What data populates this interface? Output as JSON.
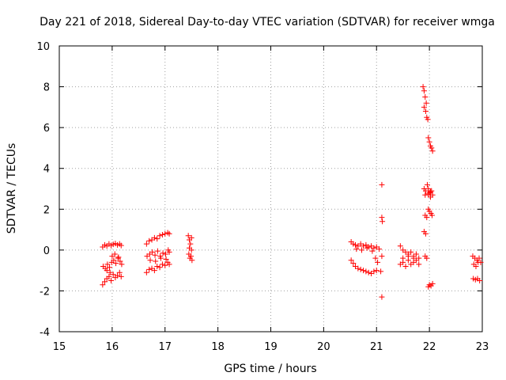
{
  "chart_data": {
    "type": "scatter",
    "title": "Day 221 of 2018, Sidereal Day-to-day VTEC variation (SDTVAR) for receiver wmga",
    "xlabel": "GPS time / hours",
    "ylabel": "SDTVAR / TECUs",
    "xlim": [
      15,
      23
    ],
    "ylim": [
      -4,
      10
    ],
    "xticks": [
      15,
      16,
      17,
      18,
      19,
      20,
      21,
      22,
      23
    ],
    "yticks": [
      -4,
      -2,
      0,
      2,
      4,
      6,
      8,
      10
    ],
    "xtick_labels": [
      "15",
      "16",
      "17",
      "18",
      "19",
      "20",
      "21",
      "22",
      "23"
    ],
    "ytick_labels": [
      "-4",
      "-2",
      "0",
      "2",
      "4",
      "6",
      "8",
      "10"
    ],
    "grid": true,
    "marker": "plus",
    "color": "#ff0000",
    "points": [
      [
        15.82,
        0.15
      ],
      [
        15.86,
        0.25
      ],
      [
        15.9,
        0.2
      ],
      [
        15.94,
        0.3
      ],
      [
        15.98,
        0.22
      ],
      [
        16.02,
        0.28
      ],
      [
        16.06,
        0.32
      ],
      [
        16.1,
        0.25
      ],
      [
        16.14,
        0.3
      ],
      [
        16.17,
        0.22
      ],
      [
        15.82,
        -1.7
      ],
      [
        15.86,
        -1.55
      ],
      [
        15.9,
        -1.4
      ],
      [
        15.94,
        -1.3
      ],
      [
        15.98,
        -1.5
      ],
      [
        16.02,
        -1.2
      ],
      [
        16.06,
        -1.35
      ],
      [
        16.1,
        -1.25
      ],
      [
        16.14,
        -1.1
      ],
      [
        16.17,
        -1.3
      ],
      [
        15.83,
        -0.8
      ],
      [
        15.87,
        -0.9
      ],
      [
        15.91,
        -0.7
      ],
      [
        15.95,
        -0.85
      ],
      [
        15.99,
        -0.6
      ],
      [
        16.03,
        -0.5
      ],
      [
        16.07,
        -0.65
      ],
      [
        16.11,
        -0.4
      ],
      [
        16.15,
        -0.55
      ],
      [
        16.18,
        -0.7
      ],
      [
        15.9,
        -1.0
      ],
      [
        15.96,
        -1.1
      ],
      [
        16.0,
        -0.3
      ],
      [
        16.05,
        -0.2
      ],
      [
        16.12,
        -0.35
      ],
      [
        16.65,
        0.3
      ],
      [
        16.7,
        0.45
      ],
      [
        16.75,
        0.5
      ],
      [
        16.8,
        0.6
      ],
      [
        16.85,
        0.55
      ],
      [
        16.9,
        0.7
      ],
      [
        16.95,
        0.75
      ],
      [
        17.0,
        0.8
      ],
      [
        17.05,
        0.85
      ],
      [
        17.08,
        0.8
      ],
      [
        16.65,
        -1.1
      ],
      [
        16.7,
        -0.95
      ],
      [
        16.75,
        -0.9
      ],
      [
        16.8,
        -1.0
      ],
      [
        16.85,
        -0.8
      ],
      [
        16.9,
        -0.85
      ],
      [
        16.95,
        -0.7
      ],
      [
        17.0,
        -0.75
      ],
      [
        17.05,
        -0.6
      ],
      [
        17.08,
        -0.7
      ],
      [
        16.66,
        -0.3
      ],
      [
        16.71,
        -0.2
      ],
      [
        16.76,
        -0.1
      ],
      [
        16.81,
        -0.25
      ],
      [
        16.86,
        -0.05
      ],
      [
        16.91,
        -0.3
      ],
      [
        16.96,
        -0.15
      ],
      [
        17.01,
        -0.2
      ],
      [
        17.06,
        0.0
      ],
      [
        17.08,
        -0.1
      ],
      [
        16.72,
        -0.5
      ],
      [
        16.82,
        -0.55
      ],
      [
        16.92,
        -0.4
      ],
      [
        17.02,
        -0.45
      ],
      [
        17.44,
        0.7
      ],
      [
        17.46,
        0.5
      ],
      [
        17.48,
        0.3
      ],
      [
        17.5,
        0.6
      ],
      [
        17.45,
        -0.2
      ],
      [
        17.47,
        -0.4
      ],
      [
        17.49,
        -0.3
      ],
      [
        17.51,
        -0.5
      ],
      [
        17.46,
        0.1
      ],
      [
        17.5,
        0.0
      ],
      [
        20.52,
        0.4
      ],
      [
        20.56,
        0.3
      ],
      [
        20.6,
        0.25
      ],
      [
        20.65,
        0.2
      ],
      [
        20.7,
        0.3
      ],
      [
        20.75,
        0.2
      ],
      [
        20.8,
        0.25
      ],
      [
        20.85,
        0.15
      ],
      [
        20.9,
        0.2
      ],
      [
        20.95,
        0.1
      ],
      [
        21.0,
        0.15
      ],
      [
        21.05,
        0.05
      ],
      [
        20.52,
        -0.5
      ],
      [
        20.56,
        -0.65
      ],
      [
        20.6,
        -0.8
      ],
      [
        20.65,
        -0.9
      ],
      [
        20.7,
        -0.95
      ],
      [
        20.75,
        -1.0
      ],
      [
        20.8,
        -1.05
      ],
      [
        20.85,
        -1.1
      ],
      [
        20.9,
        -1.15
      ],
      [
        20.95,
        -1.05
      ],
      [
        21.0,
        -1.0
      ],
      [
        20.62,
        0.05
      ],
      [
        20.72,
        0.0
      ],
      [
        20.82,
        0.1
      ],
      [
        20.92,
        -0.05
      ],
      [
        20.98,
        -0.4
      ],
      [
        21.02,
        -0.6
      ],
      [
        21.08,
        -1.05
      ],
      [
        21.1,
        -0.3
      ],
      [
        21.1,
        3.2
      ],
      [
        21.1,
        1.6
      ],
      [
        21.11,
        1.4
      ],
      [
        21.1,
        -2.3
      ],
      [
        21.45,
        0.2
      ],
      [
        21.5,
        0.0
      ],
      [
        21.55,
        -0.1
      ],
      [
        21.6,
        -0.2
      ],
      [
        21.65,
        -0.1
      ],
      [
        21.7,
        -0.3
      ],
      [
        21.75,
        -0.2
      ],
      [
        21.8,
        -0.4
      ],
      [
        21.45,
        -0.7
      ],
      [
        21.5,
        -0.6
      ],
      [
        21.55,
        -0.8
      ],
      [
        21.6,
        -0.5
      ],
      [
        21.65,
        -0.7
      ],
      [
        21.7,
        -0.6
      ],
      [
        21.75,
        -0.5
      ],
      [
        21.8,
        -0.7
      ],
      [
        21.5,
        -0.4
      ],
      [
        21.6,
        -0.3
      ],
      [
        21.7,
        -0.4
      ],
      [
        21.88,
        8.0
      ],
      [
        21.9,
        7.8
      ],
      [
        21.92,
        7.5
      ],
      [
        21.94,
        7.2
      ],
      [
        21.9,
        7.0
      ],
      [
        21.93,
        6.8
      ],
      [
        21.95,
        6.5
      ],
      [
        21.97,
        6.4
      ],
      [
        21.98,
        5.5
      ],
      [
        22.0,
        5.3
      ],
      [
        22.02,
        5.1
      ],
      [
        22.04,
        5.0
      ],
      [
        22.06,
        4.85
      ],
      [
        21.9,
        3.0
      ],
      [
        21.93,
        2.9
      ],
      [
        21.96,
        3.2
      ],
      [
        21.98,
        3.0
      ],
      [
        22.0,
        2.8
      ],
      [
        22.02,
        2.6
      ],
      [
        22.04,
        2.9
      ],
      [
        22.06,
        2.7
      ],
      [
        21.92,
        2.7
      ],
      [
        21.98,
        2.75
      ],
      [
        22.02,
        2.85
      ],
      [
        21.92,
        1.7
      ],
      [
        21.95,
        1.6
      ],
      [
        21.98,
        2.0
      ],
      [
        22.0,
        1.9
      ],
      [
        22.03,
        1.8
      ],
      [
        22.05,
        1.7
      ],
      [
        21.9,
        0.9
      ],
      [
        21.93,
        0.8
      ],
      [
        21.92,
        -0.3
      ],
      [
        21.95,
        -0.4
      ],
      [
        21.98,
        -1.8
      ],
      [
        22.0,
        -1.7
      ],
      [
        22.03,
        -1.75
      ],
      [
        22.06,
        -1.65
      ],
      [
        22.82,
        -0.3
      ],
      [
        22.86,
        -0.4
      ],
      [
        22.9,
        -0.5
      ],
      [
        22.94,
        -0.4
      ],
      [
        22.97,
        -0.6
      ],
      [
        22.84,
        -0.7
      ],
      [
        22.88,
        -0.8
      ],
      [
        22.92,
        -0.6
      ],
      [
        22.83,
        -1.4
      ],
      [
        22.87,
        -1.45
      ],
      [
        22.91,
        -1.4
      ],
      [
        22.95,
        -1.5
      ]
    ]
  }
}
